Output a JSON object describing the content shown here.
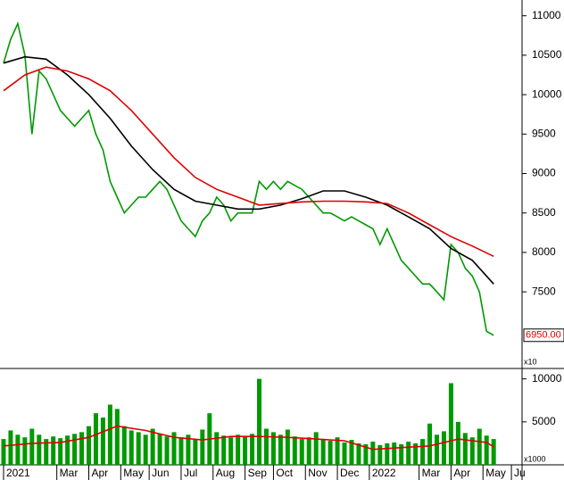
{
  "chart_data": [
    {
      "type": "line",
      "price_label": "6950.00",
      "scale_note": "x10",
      "xlim": [
        -0.5,
        73
      ],
      "ylim": [
        6540,
        11200
      ],
      "yticks": [
        7500,
        8000,
        8500,
        9000,
        9500,
        10000,
        10500,
        11000
      ],
      "series": [
        {
          "color": "#009900",
          "x": [
            0,
            1,
            2,
            3,
            4,
            5,
            6,
            7,
            8,
            9,
            10,
            11,
            12,
            13,
            14,
            15,
            16,
            17,
            18,
            19,
            20,
            21,
            22,
            23,
            24,
            25,
            26,
            27,
            28,
            29,
            30,
            31,
            32,
            33,
            34,
            35,
            36,
            37,
            38,
            39,
            40,
            41,
            42,
            43,
            44,
            45,
            46,
            47,
            48,
            49,
            50,
            51,
            52,
            53,
            54,
            55,
            56,
            57,
            58,
            59,
            60,
            61,
            62,
            63,
            64,
            65,
            66,
            67,
            68,
            69
          ],
          "values": [
            10400,
            10700,
            10900,
            10500,
            9500,
            10300,
            10200,
            10000,
            9800,
            9700,
            9600,
            9700,
            9800,
            9500,
            9300,
            8900,
            8700,
            8500,
            8600,
            8700,
            8700,
            8800,
            8900,
            8800,
            8600,
            8400,
            8300,
            8200,
            8400,
            8500,
            8700,
            8600,
            8400,
            8500,
            8500,
            8500,
            8900,
            8800,
            8900,
            8800,
            8900,
            8850,
            8800,
            8700,
            8600,
            8500,
            8500,
            8450,
            8400,
            8450,
            8400,
            8350,
            8300,
            8100,
            8300,
            8100,
            7900,
            7800,
            7700,
            7600,
            7600,
            7500,
            7400,
            8100,
            8000,
            7800,
            7700,
            7500,
            7000,
            6950
          ]
        },
        {
          "color": "#000000",
          "x": [
            0,
            3,
            6,
            9,
            12,
            15,
            18,
            21,
            24,
            27,
            30,
            33,
            36,
            39,
            42,
            45,
            48,
            51,
            54,
            57,
            60,
            63,
            66,
            69
          ],
          "values": [
            10400,
            10480,
            10450,
            10250,
            10000,
            9700,
            9350,
            9050,
            8800,
            8650,
            8600,
            8550,
            8550,
            8600,
            8680,
            8780,
            8780,
            8700,
            8600,
            8450,
            8300,
            8050,
            7900,
            7600
          ]
        },
        {
          "color": "#e00000",
          "x": [
            0,
            3,
            6,
            9,
            12,
            15,
            18,
            21,
            24,
            27,
            30,
            33,
            36,
            39,
            42,
            45,
            48,
            51,
            54,
            57,
            60,
            63,
            66,
            69
          ],
          "values": [
            10050,
            10250,
            10350,
            10300,
            10200,
            10050,
            9800,
            9500,
            9200,
            8950,
            8800,
            8700,
            8600,
            8620,
            8640,
            8650,
            8650,
            8640,
            8620,
            8500,
            8350,
            8200,
            8080,
            7950
          ]
        }
      ]
    },
    {
      "type": "bar",
      "scale_note": "x1000",
      "xlim": [
        -0.5,
        73
      ],
      "ylim": [
        0,
        11000
      ],
      "yticks": [
        5000,
        10000
      ],
      "xticks": [
        {
          "value": 0,
          "label": "2021"
        },
        {
          "value": 7.5,
          "label": "Mar"
        },
        {
          "value": 12,
          "label": "Apr"
        },
        {
          "value": 16.5,
          "label": "May"
        },
        {
          "value": 20.5,
          "label": "Jun"
        },
        {
          "value": 25,
          "label": "Jul"
        },
        {
          "value": 29.5,
          "label": "Aug"
        },
        {
          "value": 34,
          "label": "Sep"
        },
        {
          "value": 38,
          "label": "Oct"
        },
        {
          "value": 42.5,
          "label": "Nov"
        },
        {
          "value": 47,
          "label": "Dec"
        },
        {
          "value": 51.5,
          "label": "2022"
        },
        {
          "value": 58.5,
          "label": "Mar"
        },
        {
          "value": 63,
          "label": "Apr"
        },
        {
          "value": 67.5,
          "label": "May"
        },
        {
          "value": 71.5,
          "label": "Ju"
        }
      ],
      "series": [
        {
          "color": "#009900",
          "x": [
            0,
            1,
            2,
            3,
            4,
            5,
            6,
            7,
            8,
            9,
            10,
            11,
            12,
            13,
            14,
            15,
            16,
            17,
            18,
            19,
            20,
            21,
            22,
            23,
            24,
            25,
            26,
            27,
            28,
            29,
            30,
            31,
            32,
            33,
            34,
            35,
            36,
            37,
            38,
            39,
            40,
            41,
            42,
            43,
            44,
            45,
            46,
            47,
            48,
            49,
            50,
            51,
            52,
            53,
            54,
            55,
            56,
            57,
            58,
            59,
            60,
            61,
            62,
            63,
            64,
            65,
            66,
            67,
            68,
            69
          ],
          "values": [
            3000,
            4000,
            3500,
            3200,
            4200,
            3500,
            3000,
            3300,
            3100,
            3400,
            3600,
            3800,
            4500,
            6000,
            5500,
            7000,
            6500,
            4500,
            4000,
            3800,
            3500,
            4200,
            3600,
            3300,
            3800,
            3200,
            3500,
            3000,
            4100,
            6000,
            3800,
            3400,
            3200,
            3500,
            3300,
            3600,
            10000,
            4200,
            3800,
            3500,
            4100,
            3300,
            3000,
            3200,
            3800,
            3000,
            2800,
            3200,
            2600,
            2900,
            2500,
            2400,
            2700,
            2300,
            2500,
            2600,
            2400,
            2700,
            2500,
            3000,
            4800,
            3500,
            3900,
            9500,
            5000,
            3700,
            3200,
            4200,
            3400,
            3000
          ]
        },
        {
          "color": "#e00000",
          "x": [
            0,
            4,
            8,
            12,
            16,
            20,
            24,
            28,
            32,
            36,
            40,
            44,
            48,
            52,
            56,
            60,
            64,
            68,
            69
          ],
          "values": [
            2200,
            2500,
            2600,
            3200,
            4500,
            4000,
            3200,
            2900,
            3300,
            3300,
            3200,
            3000,
            2800,
            1800,
            2000,
            2200,
            3000,
            2600,
            2100
          ]
        }
      ]
    }
  ]
}
